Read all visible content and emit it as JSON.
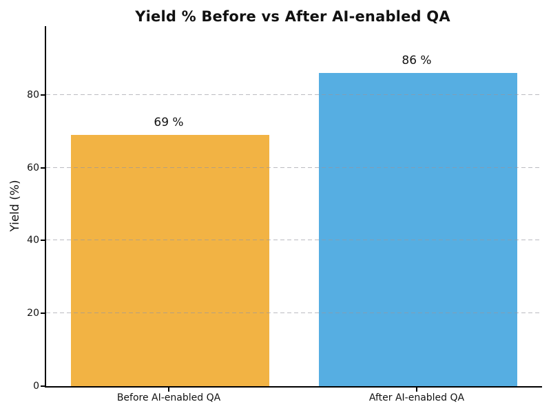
{
  "chart_data": {
    "type": "bar",
    "title": "Yield % Before vs After AI-enabled QA",
    "ylabel": "Yield (%)",
    "xlabel": "",
    "categories": [
      "Before AI-enabled QA",
      "After AI-enabled QA"
    ],
    "values": [
      69,
      86
    ],
    "bar_value_labels": [
      "69 %",
      "86 %"
    ],
    "bar_colors": [
      "#F2B344",
      "#56AEE2"
    ],
    "yticks": [
      0,
      20,
      40,
      60,
      80
    ],
    "ylim": [
      0,
      98.9
    ],
    "grid": "horizontal dashed gray, drawn above bars",
    "legend": "none",
    "spines": "left and bottom only, black"
  }
}
